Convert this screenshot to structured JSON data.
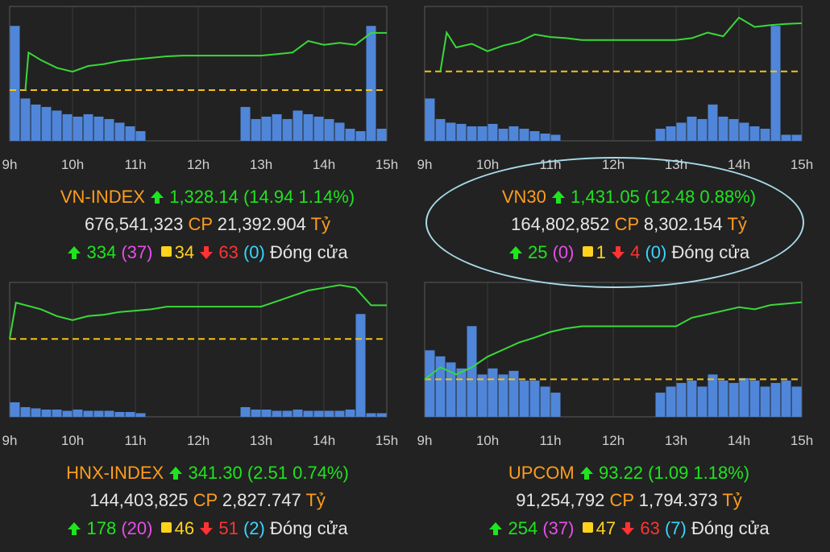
{
  "panels": [
    {
      "name": "VN-INDEX",
      "value": "1,328.14",
      "change": "(14.94 1.14%)",
      "volume": "676,541,323",
      "cp": "CP",
      "amount": "21,392.904",
      "unit": "Tỷ",
      "adv": "334",
      "adv_ceiling": "(37)",
      "unch": "34",
      "dec": "63",
      "dec_floor": "(0)",
      "status": "Đóng cửa"
    },
    {
      "name": "VN30",
      "value": "1,431.05",
      "change": "(12.48 0.88%)",
      "volume": "164,802,852",
      "cp": "CP",
      "amount": "8,302.154",
      "unit": "Tỷ",
      "adv": "25",
      "adv_ceiling": "(0)",
      "unch": "1",
      "dec": "4",
      "dec_floor": "(0)",
      "status": "Đóng cửa"
    },
    {
      "name": "HNX-INDEX",
      "value": "341.30",
      "change": "(2.51 0.74%)",
      "volume": "144,403,825",
      "cp": "CP",
      "amount": "2,827.747",
      "unit": "Tỷ",
      "adv": "178",
      "adv_ceiling": "(20)",
      "unch": "46",
      "dec": "51",
      "dec_floor": "(2)",
      "status": "Đóng cửa"
    },
    {
      "name": "UPCOM",
      "value": "93.22",
      "change": "(1.09 1.18%)",
      "volume": "91,254,792",
      "cp": "CP",
      "amount": "1,794.373",
      "unit": "Tỷ",
      "adv": "254",
      "adv_ceiling": "(37)",
      "unch": "47",
      "dec": "63",
      "dec_floor": "(7)",
      "status": "Đóng cửa"
    }
  ],
  "colors": {
    "index_line": "#39d939",
    "reference_line": "#f2c21b",
    "volume_bars": "#4f86d9",
    "name": "#ff9d1c",
    "up": "#1ee51e",
    "down": "#ff3333",
    "ceiling": "#e84de8",
    "floor": "#3ad4ff"
  },
  "icons": [
    "arrow-up-icon",
    "square-icon",
    "arrow-down-icon"
  ],
  "chart_data": [
    {
      "type": "line",
      "title": "VN-INDEX",
      "x_ticks": [
        "9h",
        "10h",
        "11h",
        "12h",
        "13h",
        "14h",
        "15h"
      ],
      "reference": 1313.2,
      "ylim": [
        1300,
        1335
      ],
      "series": [
        {
          "x": [
            9.25,
            9.3,
            9.5,
            9.75,
            10.0,
            10.25,
            10.5,
            10.75,
            11.0,
            11.25,
            11.5,
            11.75,
            12.0,
            12.5,
            13.0,
            13.25,
            13.5,
            13.75,
            14.0,
            14.25,
            14.5,
            14.75,
            15.0
          ],
          "values": [
            1313.2,
            1323.0,
            1321.0,
            1319.0,
            1318.0,
            1319.5,
            1320.0,
            1320.8,
            1321.2,
            1321.6,
            1322.0,
            1322.2,
            1322.2,
            1322.2,
            1322.2,
            1322.6,
            1323.0,
            1326.0,
            1325.0,
            1325.5,
            1325.0,
            1328.1,
            1328.1
          ]
        }
      ],
      "volume": [
        0.95,
        0.35,
        0.3,
        0.28,
        0.25,
        0.22,
        0.2,
        0.22,
        0.2,
        0.18,
        0.15,
        0.12,
        0.08,
        0,
        0,
        0,
        0,
        0,
        0,
        0,
        0,
        0,
        0.28,
        0.18,
        0.2,
        0.22,
        0.18,
        0.25,
        0.22,
        0.2,
        0.18,
        0.15,
        0.1,
        0.08,
        0.95,
        0.1
      ]
    },
    {
      "type": "line",
      "title": "VN30",
      "x_ticks": [
        "9h",
        "10h",
        "11h",
        "12h",
        "13h",
        "14h",
        "15h"
      ],
      "reference": 1418.6,
      "ylim": [
        1400,
        1436
      ],
      "series": [
        {
          "x": [
            9.25,
            9.35,
            9.5,
            9.75,
            10.0,
            10.25,
            10.5,
            10.75,
            11.0,
            11.25,
            11.5,
            11.75,
            12.0,
            12.5,
            13.0,
            13.25,
            13.5,
            13.75,
            14.0,
            14.25,
            14.5,
            14.75,
            15.0
          ],
          "values": [
            1418.6,
            1429.0,
            1425.0,
            1426.0,
            1424.0,
            1425.5,
            1426.5,
            1428.5,
            1427.8,
            1427.5,
            1427.0,
            1427.0,
            1427.0,
            1427.0,
            1427.0,
            1427.5,
            1429.0,
            1428.0,
            1433.0,
            1430.5,
            1431.0,
            1431.3,
            1431.5
          ]
        }
      ],
      "volume": [
        0.35,
        0.18,
        0.15,
        0.14,
        0.12,
        0.12,
        0.14,
        0.1,
        0.12,
        0.1,
        0.08,
        0.06,
        0.05,
        0,
        0,
        0,
        0,
        0,
        0,
        0,
        0,
        0,
        0.1,
        0.12,
        0.15,
        0.2,
        0.18,
        0.3,
        0.2,
        0.18,
        0.15,
        0.12,
        0.1,
        0.95,
        0.05,
        0.05
      ]
    },
    {
      "type": "line",
      "title": "HNX-INDEX",
      "x_ticks": [
        "9h",
        "10h",
        "11h",
        "12h",
        "13h",
        "14h",
        "15h"
      ],
      "reference": 338.79,
      "ylim": [
        333,
        343
      ],
      "series": [
        {
          "x": [
            9.0,
            9.1,
            9.5,
            9.75,
            10.0,
            10.25,
            10.5,
            10.75,
            11.0,
            11.25,
            11.5,
            12.0,
            12.5,
            13.0,
            13.25,
            13.5,
            13.75,
            14.0,
            14.25,
            14.5,
            14.75,
            15.0
          ],
          "values": [
            338.79,
            341.5,
            341.0,
            340.5,
            340.2,
            340.5,
            340.6,
            340.8,
            340.9,
            341.0,
            341.2,
            341.2,
            341.2,
            341.2,
            341.6,
            342.0,
            342.4,
            342.6,
            342.8,
            342.6,
            341.3,
            341.3
          ]
        }
      ],
      "volume": [
        0.12,
        0.08,
        0.07,
        0.06,
        0.06,
        0.05,
        0.06,
        0.05,
        0.05,
        0.05,
        0.04,
        0.04,
        0.03,
        0,
        0,
        0,
        0,
        0,
        0,
        0,
        0,
        0,
        0.08,
        0.06,
        0.06,
        0.05,
        0.05,
        0.06,
        0.05,
        0.05,
        0.05,
        0.05,
        0.06,
        0.85,
        0.03,
        0.03
      ]
    },
    {
      "type": "line",
      "title": "UPCOM",
      "x_ticks": [
        "9h",
        "10h",
        "11h",
        "12h",
        "13h",
        "14h",
        "15h"
      ],
      "reference": 92.13,
      "ylim": [
        91.6,
        93.5
      ],
      "series": [
        {
          "x": [
            9.0,
            9.25,
            9.5,
            9.75,
            10.0,
            10.25,
            10.5,
            10.75,
            11.0,
            11.25,
            11.5,
            12.0,
            12.5,
            13.0,
            13.25,
            13.5,
            13.75,
            14.0,
            14.25,
            14.5,
            14.75,
            15.0
          ],
          "values": [
            92.13,
            92.3,
            92.2,
            92.3,
            92.45,
            92.55,
            92.65,
            92.72,
            92.8,
            92.85,
            92.88,
            92.88,
            92.88,
            92.88,
            93.0,
            93.05,
            93.1,
            93.15,
            93.12,
            93.18,
            93.2,
            93.22
          ]
        }
      ],
      "volume": [
        0.55,
        0.5,
        0.45,
        0.4,
        0.75,
        0.35,
        0.4,
        0.35,
        0.38,
        0.3,
        0.3,
        0.25,
        0.2,
        0,
        0,
        0,
        0,
        0,
        0,
        0,
        0,
        0,
        0.2,
        0.25,
        0.28,
        0.3,
        0.25,
        0.35,
        0.3,
        0.28,
        0.32,
        0.3,
        0.25,
        0.28,
        0.3,
        0.25
      ]
    }
  ]
}
